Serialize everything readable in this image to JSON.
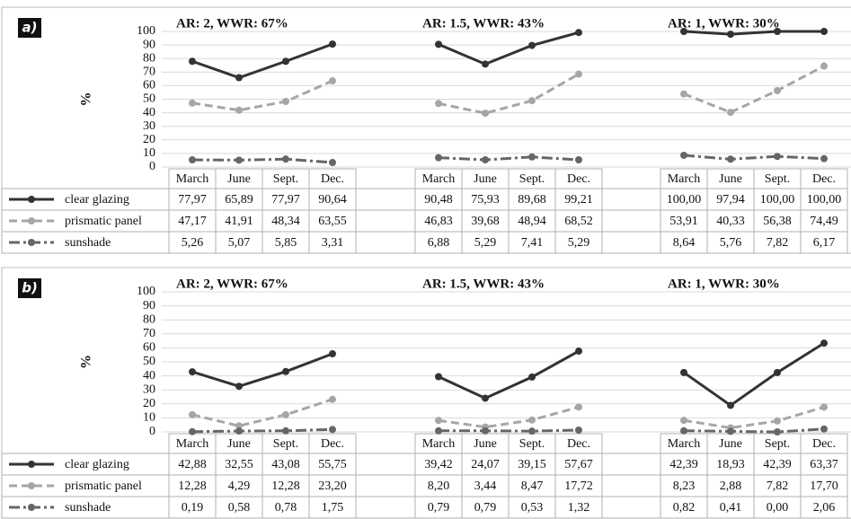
{
  "chart_data": [
    {
      "type": "line",
      "label": "a)",
      "ylabel": "%",
      "ylim": [
        0,
        100
      ],
      "yticks": [
        0,
        10,
        20,
        30,
        40,
        50,
        60,
        70,
        80,
        90,
        100
      ],
      "grid": true,
      "categories": [
        "March",
        "June",
        "Sept.",
        "Dec."
      ],
      "series": [
        {
          "name": "clear glazing",
          "color": "#333333",
          "dash": "solid"
        },
        {
          "name": "prismatic panel",
          "color": "#a6a6a6",
          "dash": "dashed"
        },
        {
          "name": "sunshade",
          "color": "#666666",
          "dash": "dashdot"
        }
      ],
      "groups": [
        {
          "title": "AR: 2, WWR:  67%",
          "series": [
            {
              "values": [
                77.97,
                65.89,
                77.97,
                90.64
              ],
              "value_labels": [
                "77,97",
                "65,89",
                "77,97",
                "90,64"
              ]
            },
            {
              "values": [
                47.17,
                41.91,
                48.34,
                63.55
              ],
              "value_labels": [
                "47,17",
                "41,91",
                "48,34",
                "63,55"
              ]
            },
            {
              "values": [
                5.26,
                5.07,
                5.85,
                3.31
              ],
              "value_labels": [
                "5,26",
                "5,07",
                "5,85",
                "3,31"
              ]
            }
          ]
        },
        {
          "title": "AR: 1.5, WWR:  43%",
          "series": [
            {
              "values": [
                90.48,
                75.93,
                89.68,
                99.21
              ],
              "value_labels": [
                "90,48",
                "75,93",
                "89,68",
                "99,21"
              ]
            },
            {
              "values": [
                46.83,
                39.68,
                48.94,
                68.52
              ],
              "value_labels": [
                "46,83",
                "39,68",
                "48,94",
                "68,52"
              ]
            },
            {
              "values": [
                6.88,
                5.29,
                7.41,
                5.29
              ],
              "value_labels": [
                "6,88",
                "5,29",
                "7,41",
                "5,29"
              ]
            }
          ]
        },
        {
          "title": "AR: 1, WWR:  30%",
          "series": [
            {
              "values": [
                100,
                97.94,
                100,
                100
              ],
              "value_labels": [
                "100,00",
                "97,94",
                "100,00",
                "100,00"
              ]
            },
            {
              "values": [
                53.91,
                40.33,
                56.38,
                74.49
              ],
              "value_labels": [
                "53,91",
                "40,33",
                "56,38",
                "74,49"
              ]
            },
            {
              "values": [
                8.64,
                5.76,
                7.82,
                6.17
              ],
              "value_labels": [
                "8,64",
                "5,76",
                "7,82",
                "6,17"
              ]
            }
          ]
        }
      ]
    },
    {
      "type": "line",
      "label": "b)",
      "ylabel": "%",
      "ylim": [
        0,
        100
      ],
      "yticks": [
        0,
        10,
        20,
        30,
        40,
        50,
        60,
        70,
        80,
        90,
        100
      ],
      "grid": true,
      "categories": [
        "March",
        "June",
        "Sept.",
        "Dec."
      ],
      "series": [
        {
          "name": "clear glazing",
          "color": "#333333",
          "dash": "solid"
        },
        {
          "name": "prismatic panel",
          "color": "#a6a6a6",
          "dash": "dashed"
        },
        {
          "name": "sunshade",
          "color": "#666666",
          "dash": "dashdot"
        }
      ],
      "groups": [
        {
          "title": "AR: 2, WWR:  67%",
          "series": [
            {
              "values": [
                42.88,
                32.55,
                43.08,
                55.75
              ],
              "value_labels": [
                "42,88",
                "32,55",
                "43,08",
                "55,75"
              ]
            },
            {
              "values": [
                12.28,
                4.29,
                12.28,
                23.2
              ],
              "value_labels": [
                "12,28",
                "4,29",
                "12,28",
                "23,20"
              ]
            },
            {
              "values": [
                0.19,
                0.58,
                0.78,
                1.75
              ],
              "value_labels": [
                "0,19",
                "0,58",
                "0,78",
                "1,75"
              ]
            }
          ]
        },
        {
          "title": "AR: 1.5, WWR:  43%",
          "series": [
            {
              "values": [
                39.42,
                24.07,
                39.15,
                57.67
              ],
              "value_labels": [
                "39,42",
                "24,07",
                "39,15",
                "57,67"
              ]
            },
            {
              "values": [
                8.2,
                3.44,
                8.47,
                17.72
              ],
              "value_labels": [
                "8,20",
                "3,44",
                "8,47",
                "17,72"
              ]
            },
            {
              "values": [
                0.79,
                0.79,
                0.53,
                1.32
              ],
              "value_labels": [
                "0,79",
                "0,79",
                "0,53",
                "1,32"
              ]
            }
          ]
        },
        {
          "title": "AR: 1, WWR:  30%",
          "series": [
            {
              "values": [
                42.39,
                18.93,
                42.39,
                63.37
              ],
              "value_labels": [
                "42,39",
                "18,93",
                "42,39",
                "63,37"
              ]
            },
            {
              "values": [
                8.23,
                2.88,
                7.82,
                17.7
              ],
              "value_labels": [
                "8,23",
                "2,88",
                "7,82",
                "17,70"
              ]
            },
            {
              "values": [
                0.82,
                0.41,
                0.0,
                2.06
              ],
              "value_labels": [
                "0,82",
                "0,41",
                "0,00",
                "2,06"
              ]
            }
          ]
        }
      ]
    }
  ]
}
